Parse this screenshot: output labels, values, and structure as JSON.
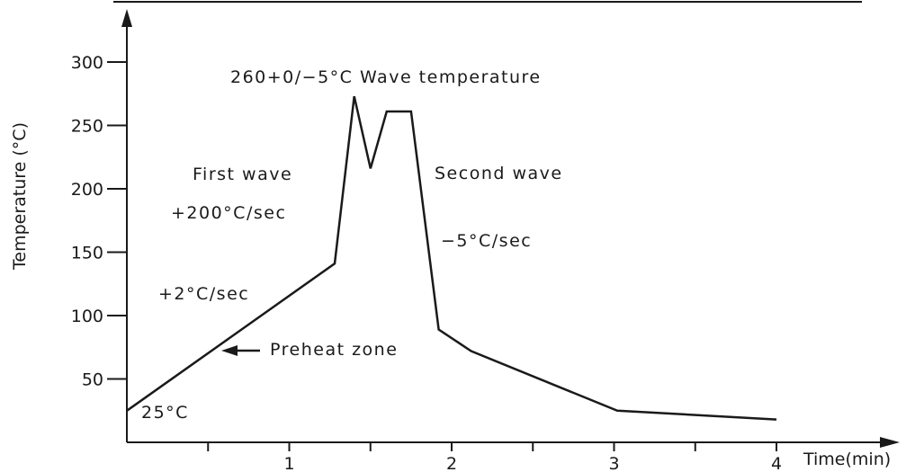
{
  "chart_data": {
    "type": "line",
    "title": "",
    "xlabel": "Time(min)",
    "ylabel": "Temperature (°C)",
    "xlim": [
      0,
      4.4
    ],
    "ylim": [
      0,
      330
    ],
    "xticks": [
      1,
      2,
      3,
      4
    ],
    "xtick_labels": [
      "1",
      "2",
      "3",
      "4"
    ],
    "yticks": [
      50,
      100,
      150,
      200,
      250,
      300
    ],
    "ytick_labels": [
      "50",
      "100",
      "150",
      "200",
      "250",
      "300"
    ],
    "grid": false,
    "legend": "none",
    "line_color": "#1a1a1a",
    "series": [
      {
        "x": [
          0,
          1.28,
          1.4,
          1.5,
          1.6,
          1.75,
          1.92,
          2.12,
          3.02,
          4.0
        ],
        "y": [
          25,
          141,
          273,
          216,
          261,
          261,
          89,
          72,
          25,
          18
        ]
      }
    ],
    "annotations": [
      {
        "text": "260+0/−5°C Wave temperature"
      },
      {
        "text": "First wave"
      },
      {
        "text": "+200°C/sec"
      },
      {
        "text": "Second wave"
      },
      {
        "text": "−5°C/sec"
      },
      {
        "text": "+2°C/sec"
      },
      {
        "text": "Preheat zone"
      },
      {
        "text": "25°C"
      }
    ]
  }
}
